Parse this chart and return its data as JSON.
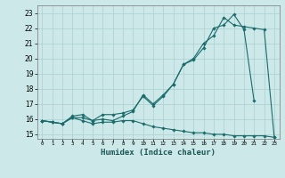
{
  "xlabel": "Humidex (Indice chaleur)",
  "ylabel": "",
  "bg_color": "#cce8e8",
  "grid_color": "#aacfcf",
  "line_color": "#1a6b6b",
  "x_values": [
    0,
    1,
    2,
    3,
    4,
    5,
    6,
    7,
    8,
    9,
    10,
    11,
    12,
    13,
    14,
    15,
    16,
    17,
    18,
    19,
    20,
    21,
    22,
    23
  ],
  "line1": [
    15.9,
    15.8,
    15.7,
    16.1,
    15.9,
    15.7,
    15.8,
    15.8,
    15.9,
    15.9,
    15.7,
    15.5,
    15.4,
    15.3,
    15.2,
    15.1,
    15.1,
    15.0,
    15.0,
    14.9,
    14.9,
    14.9,
    14.9,
    14.8
  ],
  "line2": [
    15.9,
    15.8,
    15.7,
    16.2,
    16.3,
    15.9,
    16.3,
    16.3,
    16.4,
    16.6,
    17.5,
    16.9,
    17.5,
    18.3,
    19.6,
    19.9,
    20.7,
    22.0,
    22.2,
    22.9,
    21.9,
    17.2,
    null,
    null
  ],
  "line3": [
    15.9,
    15.8,
    15.7,
    16.1,
    16.1,
    15.9,
    16.0,
    15.9,
    16.2,
    16.5,
    17.6,
    17.0,
    17.6,
    18.3,
    19.6,
    20.0,
    21.0,
    21.5,
    22.7,
    22.2,
    22.1,
    22.0,
    21.9,
    14.8
  ],
  "xlim": [
    -0.5,
    23.5
  ],
  "ylim": [
    14.7,
    23.5
  ],
  "yticks": [
    15,
    16,
    17,
    18,
    19,
    20,
    21,
    22,
    23
  ],
  "xticks": [
    0,
    1,
    2,
    3,
    4,
    5,
    6,
    7,
    8,
    9,
    10,
    11,
    12,
    13,
    14,
    15,
    16,
    17,
    18,
    19,
    20,
    21,
    22,
    23
  ]
}
